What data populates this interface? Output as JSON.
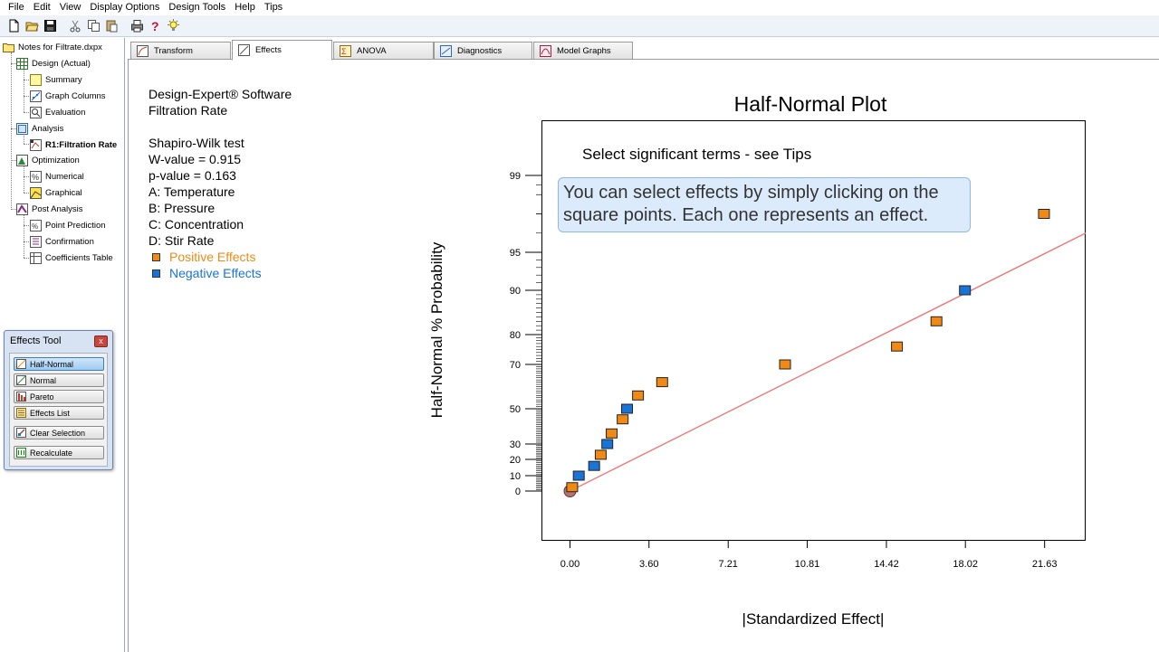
{
  "menu": [
    "File",
    "Edit",
    "View",
    "Display Options",
    "Design Tools",
    "Help",
    "Tips"
  ],
  "toolbar": {
    "icons": [
      "new-file-icon",
      "open-folder-icon",
      "save-icon",
      "cut-icon",
      "copy-icon",
      "paste-icon",
      "print-icon",
      "help-icon",
      "tip-bulb-icon"
    ]
  },
  "tree": {
    "root": "Notes for Filtrate.dxpx",
    "design": "Design (Actual)",
    "summary": "Summary",
    "graph_columns": "Graph Columns",
    "evaluation": "Evaluation",
    "analysis": "Analysis",
    "r1": "R1:Filtration Rate",
    "optimization": "Optimization",
    "numerical": "Numerical",
    "graphical": "Graphical",
    "post_analysis": "Post Analysis",
    "point_prediction": "Point Prediction",
    "confirmation": "Confirmation",
    "coefficients_table": "Coefficients Table"
  },
  "effects_tool": {
    "title": "Effects Tool",
    "close": "x",
    "buttons": {
      "half_normal": "Half-Normal",
      "normal": "Normal",
      "pareto": "Pareto",
      "effects_list": "Effects List",
      "clear_selection": "Clear Selection",
      "recalculate": "Recalculate"
    }
  },
  "tabs": {
    "transform": "Transform",
    "effects": "Effects",
    "anova": "ANOVA",
    "diagnostics": "Diagnostics",
    "model_graphs": "Model Graphs"
  },
  "info": {
    "software": "Design-Expert® Software",
    "response": "Filtration Rate",
    "test": "Shapiro-Wilk test",
    "w_value": "W-value = 0.915",
    "p_value": "p-value = 0.163",
    "factor_a": "A: Temperature",
    "factor_b": "B: Pressure",
    "factor_c": "C: Concentration",
    "factor_d": "D: Stir Rate",
    "positive": "Positive Effects",
    "negative": "Negative Effects"
  },
  "colors": {
    "positive": "#f08a14",
    "negative": "#1874d6",
    "fit_line": "#ee7777",
    "tip_box": "#dcebfb"
  },
  "tips": {
    "select": "Select significant terms - see Tips",
    "line1": "You can select effects by simply clicking on the",
    "line2": "square points.  Each one represents an effect."
  },
  "chart_data": {
    "type": "scatter",
    "title": "Half-Normal Plot",
    "xlabel": "|Standardized Effect|",
    "ylabel": "Half-Normal % Probability",
    "x_ticks": [
      "0.00",
      "3.60",
      "7.21",
      "10.81",
      "14.42",
      "18.02",
      "21.63"
    ],
    "y_ticks": [
      "0",
      "10",
      "20",
      "30",
      "50",
      "70",
      "80",
      "90",
      "95",
      "99"
    ],
    "xlim": [
      -1.3,
      23.5
    ],
    "grid": false,
    "points": [
      {
        "x": 0.1,
        "y": 2.5,
        "effect": "positive"
      },
      {
        "x": 0.4,
        "y": 10,
        "effect": "negative"
      },
      {
        "x": 1.1,
        "y": 16,
        "effect": "negative"
      },
      {
        "x": 1.4,
        "y": 23,
        "effect": "positive"
      },
      {
        "x": 1.7,
        "y": 30,
        "effect": "negative"
      },
      {
        "x": 1.9,
        "y": 36,
        "effect": "positive"
      },
      {
        "x": 2.4,
        "y": 44,
        "effect": "positive"
      },
      {
        "x": 2.6,
        "y": 50,
        "effect": "negative"
      },
      {
        "x": 3.1,
        "y": 56,
        "effect": "positive"
      },
      {
        "x": 4.2,
        "y": 62,
        "effect": "positive"
      },
      {
        "x": 9.8,
        "y": 70,
        "effect": "positive"
      },
      {
        "x": 14.9,
        "y": 76,
        "effect": "positive"
      },
      {
        "x": 16.7,
        "y": 83,
        "effect": "positive"
      },
      {
        "x": 18.0,
        "y": 90,
        "effect": "negative"
      },
      {
        "x": 21.6,
        "y": 97,
        "effect": "positive"
      }
    ],
    "zero_point": {
      "x": 0.0,
      "y": 0
    },
    "fit_line": [
      {
        "x": 0.0,
        "y": 0
      },
      {
        "x": 23.5,
        "y": 96
      }
    ]
  }
}
